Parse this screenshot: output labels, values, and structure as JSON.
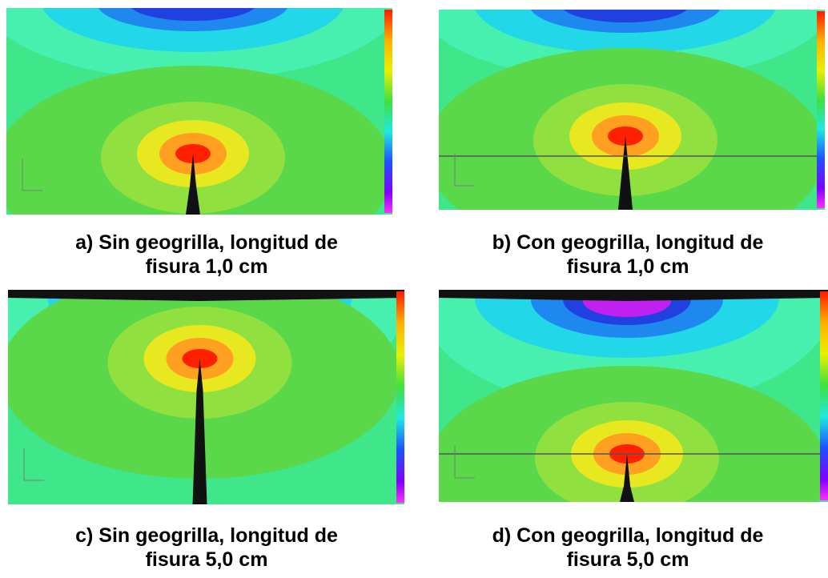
{
  "figure": {
    "panels": [
      {
        "caption": [
          "a) Sin geogrilla, longitud de",
          "fisura 1,0 cm"
        ]
      },
      {
        "caption": [
          "b) Con geogrilla, longitud de",
          "fisura 1,0 cm"
        ]
      },
      {
        "caption": [
          "c) Sin geogrilla, longitud de",
          "fisura 5,0 cm"
        ]
      },
      {
        "caption": [
          "d) Con geogrilla, longitud de",
          "fisura 5,0 cm"
        ]
      }
    ]
  }
}
